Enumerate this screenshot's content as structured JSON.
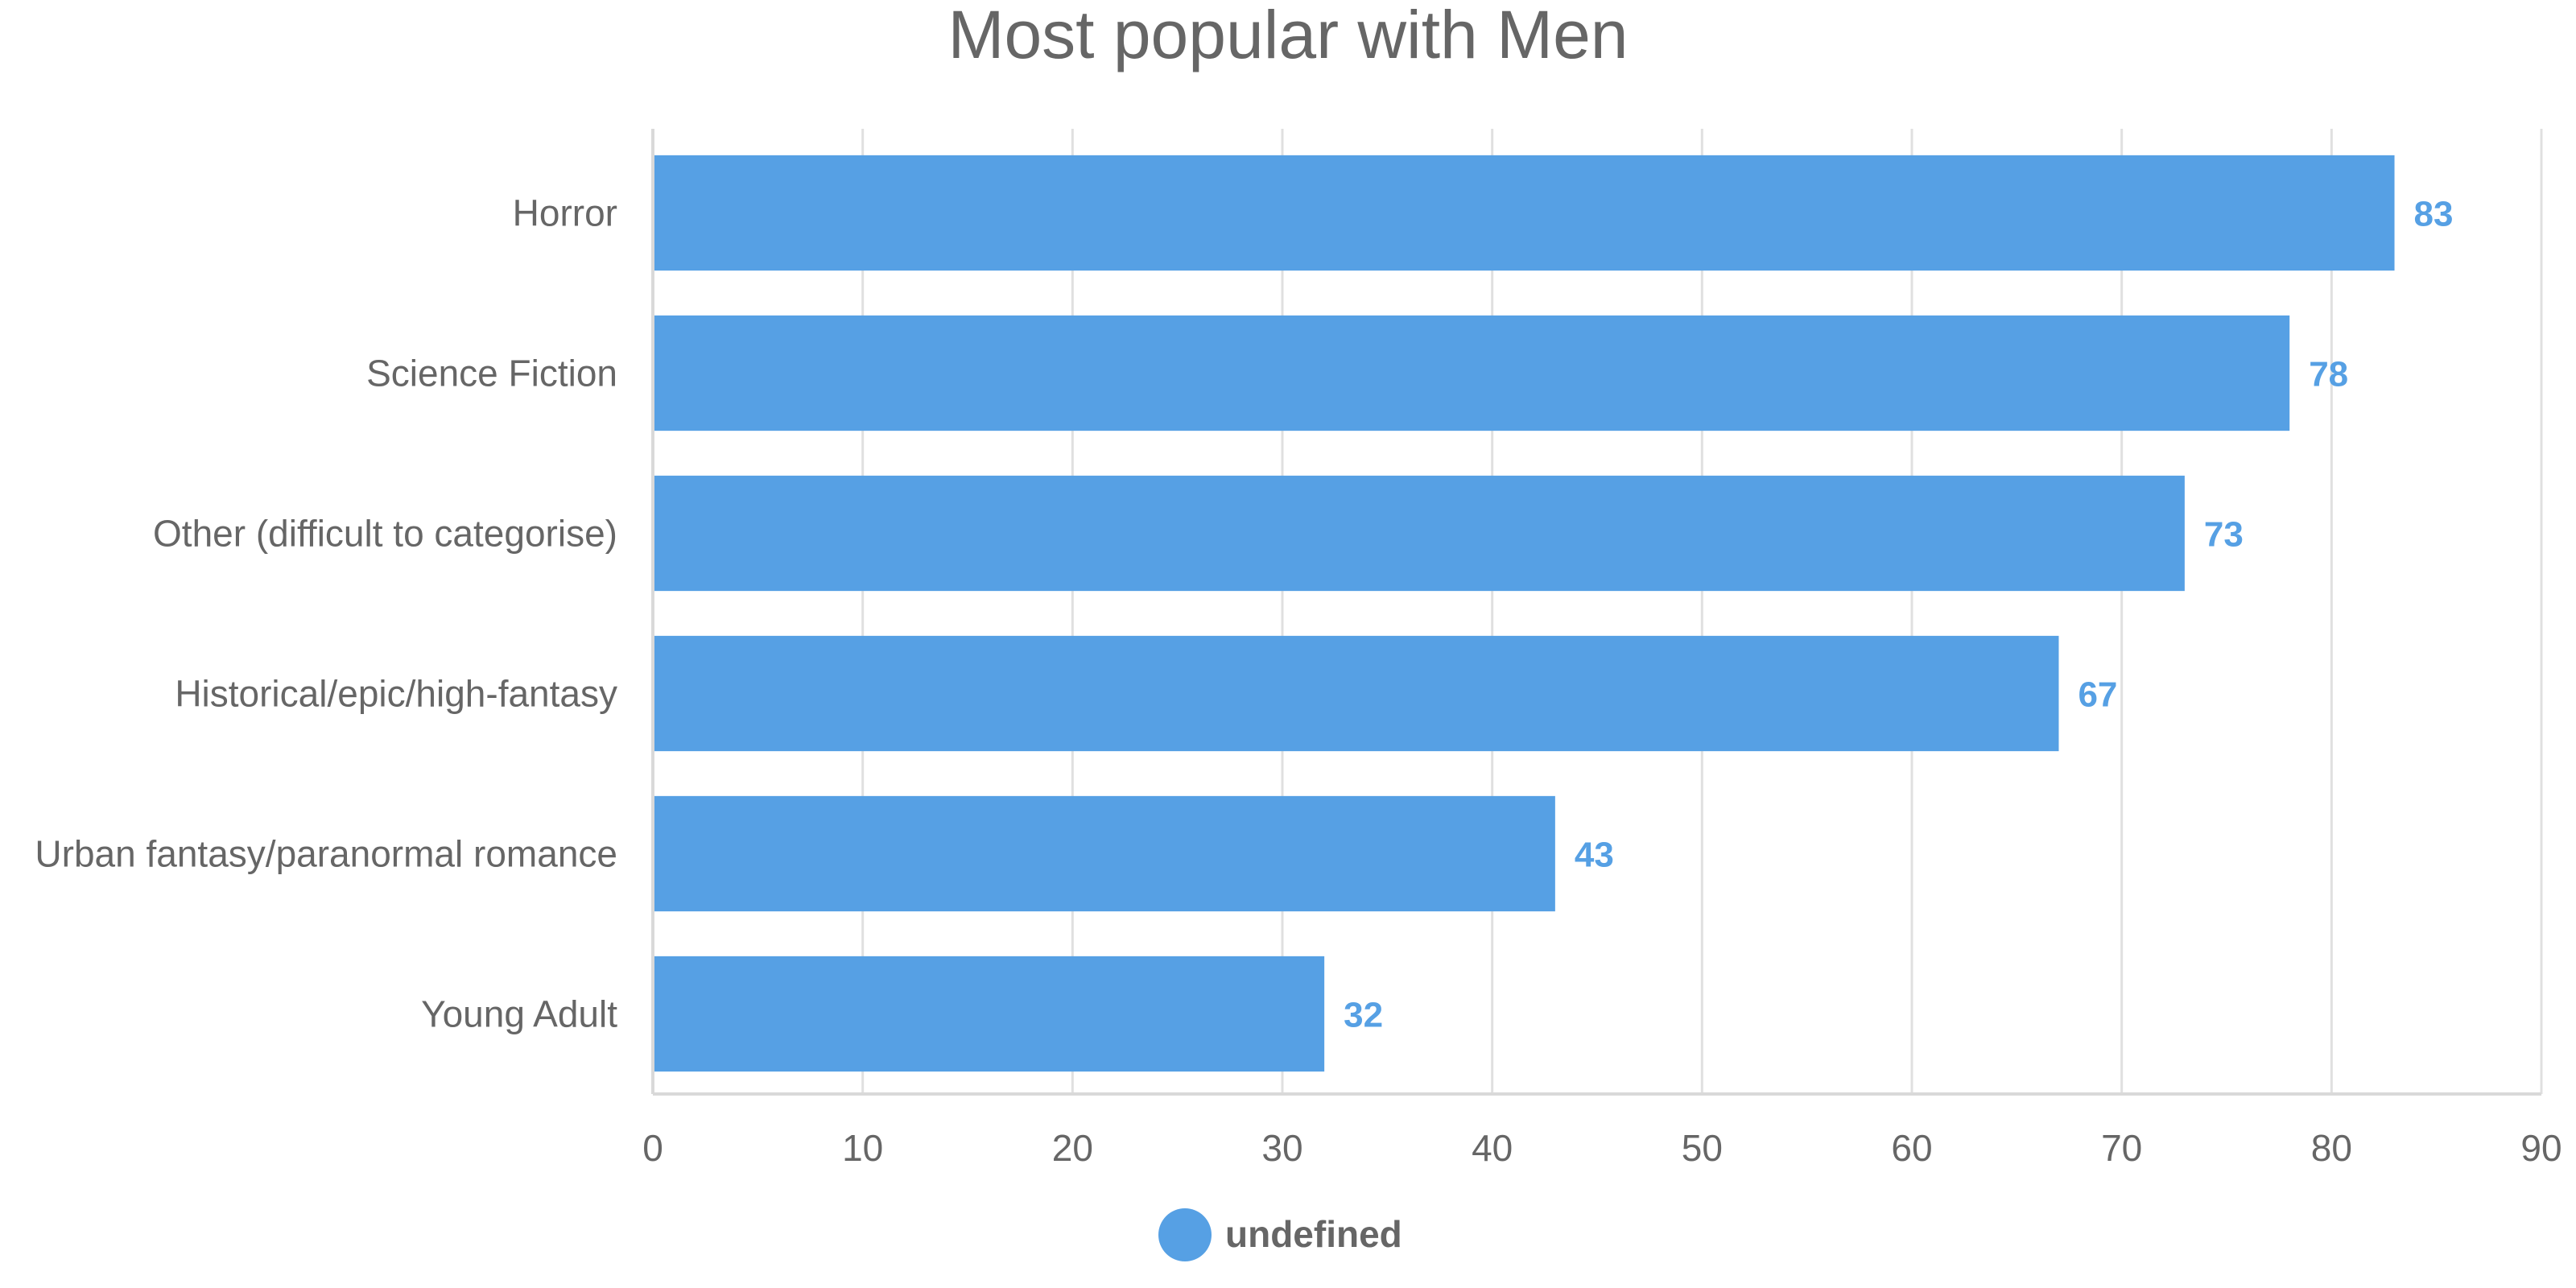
{
  "chart_data": {
    "type": "bar",
    "orientation": "horizontal",
    "title": "Most popular with Men",
    "categories": [
      "Horror",
      "Science Fiction",
      "Other (difficult to categorise)",
      "Historical/epic/high-fantasy",
      "Urban fantasy/paranormal romance",
      "Young Adult"
    ],
    "series": [
      {
        "name": "undefined",
        "values": [
          83,
          78,
          73,
          67,
          43,
          32
        ]
      }
    ],
    "xlim": [
      0,
      90
    ],
    "x_ticks": [
      0,
      10,
      20,
      30,
      40,
      50,
      60,
      70,
      80,
      90
    ],
    "grid": true,
    "legend_position": "bottom-center",
    "colors": {
      "bar": "#56a0e4",
      "text": "#666666",
      "grid": "#e0e0e0"
    }
  }
}
